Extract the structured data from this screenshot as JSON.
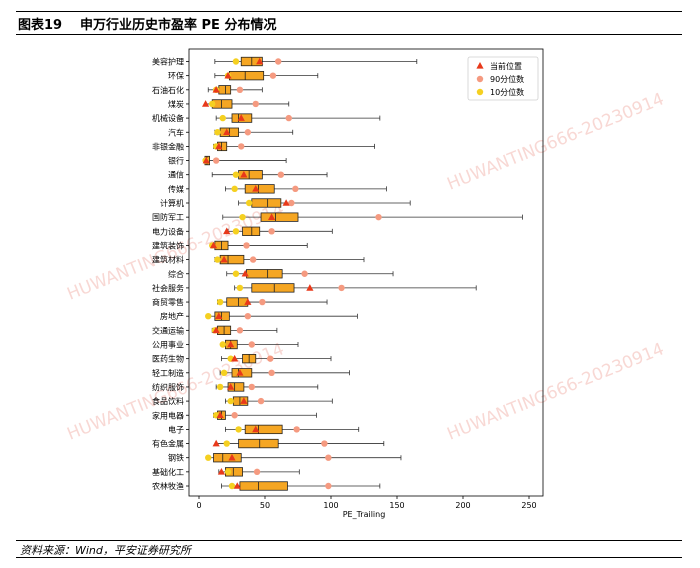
{
  "header": {
    "figure_no": "图表19",
    "title": "申万行业历史市盈率 PE 分布情况"
  },
  "footer": {
    "source": "资料来源：Wind，平安证券研究所"
  },
  "watermark": "HUWANTING666-20230914",
  "colors": {
    "box": "#f5a623",
    "current": "#e8391a",
    "p90": "#f59a80",
    "p10": "#f5d020",
    "frame": "#000000"
  },
  "chart_data": {
    "type": "boxplot",
    "xlabel": "PE_Trailing",
    "xlim": [
      0,
      250
    ],
    "xticks": [
      0,
      50,
      100,
      150,
      200,
      250
    ],
    "grid": false,
    "legend_position": "top-right",
    "legend": [
      {
        "key": "current",
        "label": "当前位置",
        "marker": "triangle"
      },
      {
        "key": "p90",
        "label": "90分位数",
        "marker": "circle"
      },
      {
        "key": "p10",
        "label": "10分位数",
        "marker": "circle"
      }
    ],
    "categories": [
      "美容护理",
      "环保",
      "石油石化",
      "煤炭",
      "机械设备",
      "汽车",
      "非银金融",
      "银行",
      "通信",
      "传媒",
      "计算机",
      "国防军工",
      "电力设备",
      "建筑装饰",
      "建筑材料",
      "综合",
      "社会服务",
      "商贸零售",
      "房地产",
      "交通运输",
      "公用事业",
      "医药生物",
      "轻工制造",
      "纺织服饰",
      "食品饮料",
      "家用电器",
      "电子",
      "有色金属",
      "钢铁",
      "基础化工",
      "农林牧渔"
    ],
    "series": [
      {
        "min": 12,
        "q1": 32,
        "median": 40,
        "q3": 48,
        "max": 165,
        "current": 46,
        "p90": 60,
        "p10": 28
      },
      {
        "min": 12,
        "q1": 23,
        "median": 35,
        "q3": 49,
        "max": 90,
        "current": 22,
        "p90": 56,
        "p10": 22
      },
      {
        "min": 7,
        "q1": 15,
        "median": 20,
        "q3": 24,
        "max": 48,
        "current": 13,
        "p90": 31,
        "p10": 13
      },
      {
        "min": 5,
        "q1": 10,
        "median": 17,
        "q3": 25,
        "max": 68,
        "current": 5,
        "p90": 43,
        "p10": 10
      },
      {
        "min": 13,
        "q1": 25,
        "median": 30,
        "q3": 40,
        "max": 137,
        "current": 32,
        "p90": 68,
        "p10": 18
      },
      {
        "min": 12,
        "q1": 16,
        "median": 23,
        "q3": 30,
        "max": 71,
        "current": 21,
        "p90": 37,
        "p10": 14
      },
      {
        "min": 11,
        "q1": 14,
        "median": 17,
        "q3": 21,
        "max": 133,
        "current": 15,
        "p90": 32,
        "p10": 13
      },
      {
        "min": 4,
        "q1": 4.5,
        "median": 6,
        "q3": 8,
        "max": 66,
        "current": 5.5,
        "p90": 13,
        "p10": 5
      },
      {
        "min": 10,
        "q1": 30,
        "median": 38,
        "q3": 48,
        "max": 97,
        "current": 34,
        "p90": 62,
        "p10": 28
      },
      {
        "min": 20,
        "q1": 35,
        "median": 45,
        "q3": 57,
        "max": 142,
        "current": 43,
        "p90": 73,
        "p10": 27
      },
      {
        "min": 30,
        "q1": 40,
        "median": 52,
        "q3": 62,
        "max": 160,
        "current": 66,
        "p90": 70,
        "p10": 38
      },
      {
        "min": 18,
        "q1": 47,
        "median": 58,
        "q3": 75,
        "max": 245,
        "current": 55,
        "p90": 136,
        "p10": 33
      },
      {
        "min": 22,
        "q1": 33,
        "median": 40,
        "q3": 46,
        "max": 101,
        "current": 21,
        "p90": 55,
        "p10": 28
      },
      {
        "min": 9,
        "q1": 12,
        "median": 17,
        "q3": 22,
        "max": 82,
        "current": 11,
        "p90": 36,
        "p10": 10
      },
      {
        "min": 12,
        "q1": 16,
        "median": 22,
        "q3": 34,
        "max": 125,
        "current": 19,
        "p90": 41,
        "p10": 14
      },
      {
        "min": 21,
        "q1": 36,
        "median": 52,
        "q3": 63,
        "max": 147,
        "current": 35,
        "p90": 80,
        "p10": 28
      },
      {
        "min": 27,
        "q1": 40,
        "median": 57,
        "q3": 72,
        "max": 210,
        "current": 84,
        "p90": 108,
        "p10": 31
      },
      {
        "min": 14,
        "q1": 21,
        "median": 30,
        "q3": 37,
        "max": 97,
        "current": 37,
        "p90": 48,
        "p10": 16
      },
      {
        "min": 6,
        "q1": 12,
        "median": 17,
        "q3": 23,
        "max": 120,
        "current": 15,
        "p90": 37,
        "p10": 7
      },
      {
        "min": 10,
        "q1": 14,
        "median": 19,
        "q3": 24,
        "max": 59,
        "current": 13,
        "p90": 31,
        "p10": 12
      },
      {
        "min": 17,
        "q1": 20,
        "median": 24,
        "q3": 29,
        "max": 75,
        "current": 24,
        "p90": 40,
        "p10": 18
      },
      {
        "min": 17,
        "q1": 33,
        "median": 38,
        "q3": 43,
        "max": 100,
        "current": 27,
        "p90": 54,
        "p10": 24
      },
      {
        "min": 16,
        "q1": 25,
        "median": 30,
        "q3": 40,
        "max": 114,
        "current": 31,
        "p90": 55,
        "p10": 19
      },
      {
        "min": 13,
        "q1": 22,
        "median": 27,
        "q3": 34,
        "max": 90,
        "current": 24,
        "p90": 40,
        "p10": 16
      },
      {
        "min": 20,
        "q1": 26,
        "median": 31,
        "q3": 37,
        "max": 101,
        "current": 34,
        "p90": 47,
        "p10": 24
      },
      {
        "min": 11,
        "q1": 14,
        "median": 17,
        "q3": 20,
        "max": 89,
        "current": 16,
        "p90": 27,
        "p10": 13
      },
      {
        "min": 20,
        "q1": 35,
        "median": 45,
        "q3": 63,
        "max": 121,
        "current": 43,
        "p90": 74,
        "p10": 30
      },
      {
        "min": 13,
        "q1": 30,
        "median": 46,
        "q3": 60,
        "max": 140,
        "current": 13,
        "p90": 95,
        "p10": 21
      },
      {
        "min": 6,
        "q1": 11,
        "median": 18,
        "q3": 32,
        "max": 153,
        "current": 25,
        "p90": 98,
        "p10": 7
      },
      {
        "min": 15,
        "q1": 20,
        "median": 26,
        "q3": 33,
        "max": 76,
        "current": 17,
        "p90": 44,
        "p10": 22
      },
      {
        "min": 17,
        "q1": 31,
        "median": 45,
        "q3": 67,
        "max": 137,
        "current": 29,
        "p90": 98,
        "p10": 25
      }
    ]
  }
}
